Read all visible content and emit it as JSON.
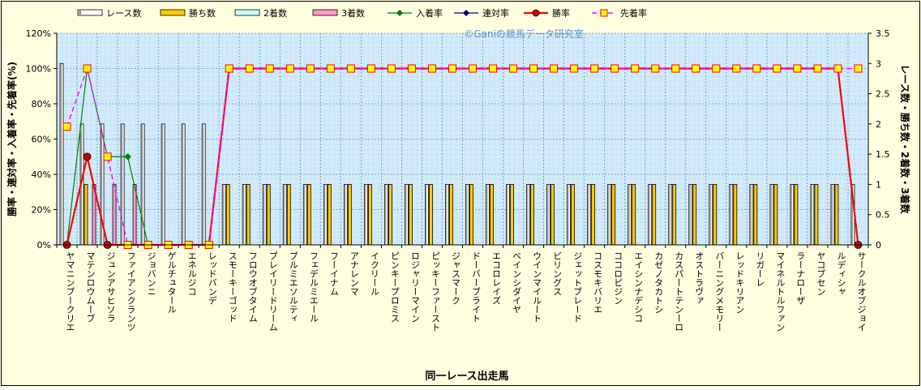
{
  "chart_data": {
    "type": "bar",
    "watermark": "©Ganiの競馬データ研究室",
    "xlabel": "同一レース出走馬",
    "ylabel_left": "勝率・連対率・入着率・先着率(%)",
    "ylabel_right": "レース数・勝ち数・2着数・3着数",
    "y_left": {
      "ticks": [
        "0%",
        "20%",
        "40%",
        "60%",
        "80%",
        "100%",
        "120%"
      ],
      "range": [
        0,
        120
      ]
    },
    "y_right": {
      "ticks": [
        "0",
        "0.5",
        "1",
        "1.5",
        "2",
        "2.5",
        "3",
        "3.5"
      ],
      "range": [
        0,
        3.5
      ]
    },
    "legend": {
      "placement": "top",
      "items": [
        {
          "name": "レース数",
          "kind": "bar",
          "color": "#ffffff"
        },
        {
          "name": "勝ち数",
          "kind": "bar",
          "color": "#ffcc00"
        },
        {
          "name": "2着数",
          "kind": "bar",
          "color": "#ccffff"
        },
        {
          "name": "3着数",
          "kind": "bar",
          "color": "#ff99cc"
        },
        {
          "name": "入着率",
          "kind": "line",
          "color": "#008000"
        },
        {
          "name": "連対率",
          "kind": "line",
          "color": "#000080"
        },
        {
          "name": "勝率",
          "kind": "line",
          "color": "#ff0000"
        },
        {
          "name": "先着率",
          "kind": "line",
          "color": "#ff00ff"
        }
      ]
    },
    "categories": [
      "ヤマニンブークリエ",
      "マテンロウムーブ",
      "ジュンアサヒソラ",
      "ファイアンクランツ",
      "ジョバンニ",
      "ゲルチュタール",
      "エネルジコ",
      "レッドバンデ",
      "スモーキーゴッド",
      "フロウオブタイム",
      "ブレイリードリーム",
      "ブルミエソルティ",
      "フェデルミエール",
      "フーイナム",
      "アナレンマ",
      "イクリール",
      "ピンキープロミス",
      "ロジャリーマイン",
      "ピッキーファースト",
      "ジャスマーク",
      "ドーバーブライト",
      "エコロレイズ",
      "ベインシダイヤ",
      "ウインマイルート",
      "ビリングス",
      "ジェットブレード",
      "コスモキバリエ",
      "ココロピジン",
      "エイシンナデシコ",
      "カゼノタカトシ",
      "カスパートテンーロ",
      "オストラヴァ",
      "バーニングメモリー",
      "レッドキリアン",
      "リガーレ",
      "マイネルトルファン",
      "ラーナローザ",
      "ヤコブセン",
      "ルディシャ",
      "サークルオブジョイ"
    ],
    "series": [
      {
        "name": "レース数",
        "axis": "right",
        "values": [
          3,
          2,
          2,
          2,
          2,
          2,
          2,
          2,
          1,
          1,
          1,
          1,
          1,
          1,
          1,
          1,
          1,
          1,
          1,
          1,
          1,
          1,
          1,
          1,
          1,
          1,
          1,
          1,
          1,
          1,
          1,
          1,
          1,
          1,
          1,
          1,
          1,
          1,
          1,
          1
        ]
      },
      {
        "name": "勝ち数",
        "axis": "right",
        "values": [
          0,
          1,
          0,
          0,
          0,
          0,
          0,
          0,
          1,
          1,
          1,
          1,
          1,
          1,
          1,
          1,
          1,
          1,
          1,
          1,
          1,
          1,
          1,
          1,
          1,
          1,
          1,
          1,
          1,
          1,
          1,
          1,
          1,
          1,
          1,
          1,
          1,
          1,
          1,
          0
        ]
      },
      {
        "name": "2着数",
        "axis": "right",
        "values": [
          0,
          0,
          0,
          0,
          0,
          0,
          0,
          0,
          0,
          0,
          0,
          0,
          0,
          0,
          0,
          0,
          0,
          0,
          0,
          0,
          0,
          0,
          0,
          0,
          0,
          0,
          0,
          0,
          0,
          0,
          0,
          0,
          0,
          0,
          0,
          0,
          0,
          0,
          0,
          0
        ]
      },
      {
        "name": "3着数",
        "axis": "right",
        "values": [
          0,
          1,
          1,
          1,
          0,
          0,
          0,
          0,
          0,
          0,
          0,
          0,
          0,
          0,
          0,
          0,
          0,
          0,
          0,
          0,
          0,
          0,
          0,
          0,
          0,
          0,
          0,
          0,
          0,
          0,
          0,
          0,
          0,
          0,
          0,
          0,
          0,
          0,
          0,
          0
        ]
      },
      {
        "name": "入着率",
        "axis": "left",
        "values": [
          0,
          100,
          50,
          50,
          0,
          0,
          0,
          0,
          100,
          100,
          100,
          100,
          100,
          100,
          100,
          100,
          100,
          100,
          100,
          100,
          100,
          100,
          100,
          100,
          100,
          100,
          100,
          100,
          100,
          100,
          100,
          100,
          100,
          100,
          100,
          100,
          100,
          100,
          100,
          0
        ]
      },
      {
        "name": "連対率",
        "axis": "left",
        "values": [
          0,
          50,
          0,
          0,
          0,
          0,
          0,
          0,
          100,
          100,
          100,
          100,
          100,
          100,
          100,
          100,
          100,
          100,
          100,
          100,
          100,
          100,
          100,
          100,
          100,
          100,
          100,
          100,
          100,
          100,
          100,
          100,
          100,
          100,
          100,
          100,
          100,
          100,
          100,
          0
        ]
      },
      {
        "name": "勝率",
        "axis": "left",
        "values": [
          0,
          50,
          0,
          0,
          0,
          0,
          0,
          0,
          100,
          100,
          100,
          100,
          100,
          100,
          100,
          100,
          100,
          100,
          100,
          100,
          100,
          100,
          100,
          100,
          100,
          100,
          100,
          100,
          100,
          100,
          100,
          100,
          100,
          100,
          100,
          100,
          100,
          100,
          100,
          0
        ]
      },
      {
        "name": "先着率",
        "axis": "left",
        "values": [
          67,
          100,
          50,
          0,
          0,
          0,
          0,
          0,
          100,
          100,
          100,
          100,
          100,
          100,
          100,
          100,
          100,
          100,
          100,
          100,
          100,
          100,
          100,
          100,
          100,
          100,
          100,
          100,
          100,
          100,
          100,
          100,
          100,
          100,
          100,
          100,
          100,
          100,
          100,
          100
        ]
      }
    ]
  }
}
